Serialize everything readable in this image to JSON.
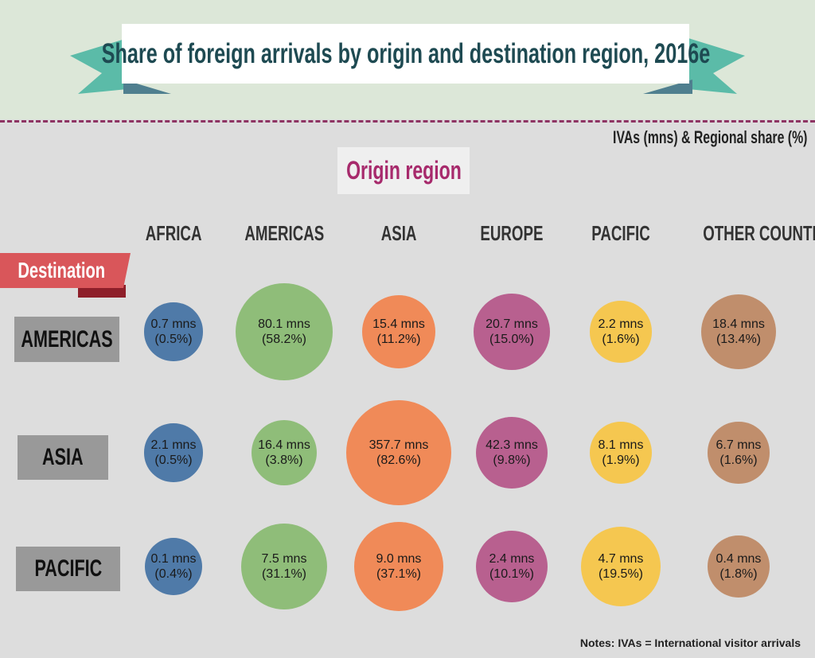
{
  "title": "Share of foreign arrivals by origin and destination region, 2016e",
  "subtitle": "IVAs (mns) & Regional share (%)",
  "origin_label": "Origin region",
  "destination_label": "Destination",
  "note": "Notes: IVAs = International visitor arrivals",
  "colors": {
    "AFRICA": "#4f7aa8",
    "AMERICAS": "#8fbd79",
    "ASIA": "#f08a58",
    "EUROPE": "#b8608f",
    "PACIFIC": "#f5c750",
    "OTHER COUNTRIES": "#c08e6c"
  },
  "chart_data": {
    "type": "bubble-matrix",
    "title": "Share of foreign arrivals by origin and destination region, 2016e",
    "units": "IVAs (mns) & Regional share (%)",
    "origins": [
      "AFRICA",
      "AMERICAS",
      "ASIA",
      "EUROPE",
      "PACIFIC",
      "OTHER COUNTRIES"
    ],
    "destinations": [
      "AMERICAS",
      "ASIA",
      "PACIFIC"
    ],
    "rows": [
      {
        "destination": "AMERICAS",
        "cells": [
          {
            "value": "0.7 mns",
            "share": "(0.5%)",
            "mns": 0.7,
            "pct": 0.5
          },
          {
            "value": "80.1 mns",
            "share": "(58.2%)",
            "mns": 80.1,
            "pct": 58.2
          },
          {
            "value": "15.4 mns",
            "share": "(11.2%)",
            "mns": 15.4,
            "pct": 11.2
          },
          {
            "value": "20.7 mns",
            "share": "(15.0%)",
            "mns": 20.7,
            "pct": 15.0
          },
          {
            "value": "2.2 mns",
            "share": "(1.6%)",
            "mns": 2.2,
            "pct": 1.6
          },
          {
            "value": "18.4 mns",
            "share": "(13.4%)",
            "mns": 18.4,
            "pct": 13.4
          }
        ]
      },
      {
        "destination": "ASIA",
        "cells": [
          {
            "value": "2.1 mns",
            "share": "(0.5%)",
            "mns": 2.1,
            "pct": 0.5
          },
          {
            "value": "16.4 mns",
            "share": "(3.8%)",
            "mns": 16.4,
            "pct": 3.8
          },
          {
            "value": "357.7 mns",
            "share": "(82.6%)",
            "mns": 357.7,
            "pct": 82.6
          },
          {
            "value": "42.3 mns",
            "share": "(9.8%)",
            "mns": 42.3,
            "pct": 9.8
          },
          {
            "value": "8.1 mns",
            "share": "(1.9%)",
            "mns": 8.1,
            "pct": 1.9
          },
          {
            "value": "6.7 mns",
            "share": "(1.6%)",
            "mns": 6.7,
            "pct": 1.6
          }
        ]
      },
      {
        "destination": "PACIFIC",
        "cells": [
          {
            "value": "0.1 mns",
            "share": "(0.4%)",
            "mns": 0.1,
            "pct": 0.4
          },
          {
            "value": "7.5 mns",
            "share": "(31.1%)",
            "mns": 7.5,
            "pct": 31.1
          },
          {
            "value": "9.0 mns",
            "share": "(37.1%)",
            "mns": 9.0,
            "pct": 37.1
          },
          {
            "value": "2.4 mns",
            "share": "(10.1%)",
            "mns": 2.4,
            "pct": 10.1
          },
          {
            "value": "4.7 mns",
            "share": "(19.5%)",
            "mns": 4.7,
            "pct": 19.5
          },
          {
            "value": "0.4 mns",
            "share": "(1.8%)",
            "mns": 0.4,
            "pct": 1.8
          }
        ]
      }
    ]
  }
}
